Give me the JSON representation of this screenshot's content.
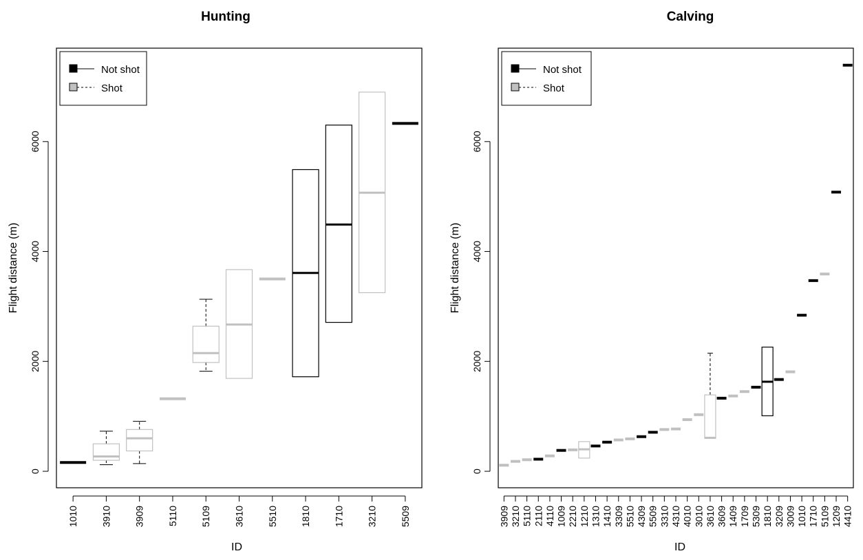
{
  "colors": {
    "not_shot": "#000000",
    "shot": "#c0c0c0"
  },
  "legend": {
    "items": [
      {
        "label": "Not shot",
        "status": "not_shot",
        "line": "solid"
      },
      {
        "label": "Shot",
        "status": "shot",
        "line": "dashed"
      }
    ],
    "position": "top-left"
  },
  "chart_data": [
    {
      "type": "box",
      "title": "Hunting",
      "xlabel": "ID",
      "ylabel": "Flight distance (m)",
      "ylim": [
        -300,
        7700
      ],
      "yticks": [
        0,
        2000,
        4000,
        6000
      ],
      "categories": [
        "1010",
        "3910",
        "3909",
        "5110",
        "5109",
        "3610",
        "5510",
        "1810",
        "1710",
        "3210",
        "5509"
      ],
      "boxes": [
        {
          "id": "1010",
          "status": "not_shot",
          "median": 160
        },
        {
          "id": "3910",
          "status": "shot",
          "q1": 200,
          "median": 270,
          "q3": 500,
          "whisker_low": 120,
          "whisker_high": 730
        },
        {
          "id": "3909",
          "status": "shot",
          "q1": 370,
          "median": 600,
          "q3": 760,
          "whisker_low": 140,
          "whisker_high": 910
        },
        {
          "id": "5110",
          "status": "shot",
          "median": 1320
        },
        {
          "id": "5109",
          "status": "shot",
          "q1": 1980,
          "median": 2150,
          "q3": 2640,
          "whisker_low": 1820,
          "whisker_high": 3130
        },
        {
          "id": "3610",
          "status": "shot",
          "q1": 1690,
          "median": 2670,
          "q3": 3670
        },
        {
          "id": "5510",
          "status": "shot",
          "median": 3500
        },
        {
          "id": "1810",
          "status": "not_shot",
          "q1": 1720,
          "median": 3610,
          "q3": 5490
        },
        {
          "id": "1710",
          "status": "not_shot",
          "q1": 2710,
          "median": 4490,
          "q3": 6300
        },
        {
          "id": "3210",
          "status": "shot",
          "q1": 3250,
          "median": 5070,
          "q3": 6900
        },
        {
          "id": "5509",
          "status": "not_shot",
          "median": 6330
        }
      ]
    },
    {
      "type": "box",
      "title": "Calving",
      "xlabel": "ID",
      "ylabel": "Flight distance (m)",
      "ylim": [
        -300,
        7700
      ],
      "yticks": [
        0,
        2000,
        4000,
        6000
      ],
      "categories": [
        "3909",
        "3210",
        "5110",
        "2110",
        "4110",
        "1009",
        "2210",
        "1210",
        "1310",
        "1410",
        "3309",
        "5510",
        "4309",
        "5509",
        "3310",
        "4310",
        "4010",
        "3010",
        "3610",
        "3609",
        "1409",
        "1709",
        "5309",
        "1810",
        "3209",
        "3009",
        "1010",
        "1710",
        "5109",
        "1209",
        "4410"
      ],
      "boxes": [
        {
          "id": "3909",
          "status": "shot",
          "median": 110
        },
        {
          "id": "3210",
          "status": "shot",
          "median": 180
        },
        {
          "id": "5110",
          "status": "shot",
          "median": 210
        },
        {
          "id": "2110",
          "status": "not_shot",
          "median": 220
        },
        {
          "id": "4110",
          "status": "shot",
          "median": 280
        },
        {
          "id": "1009",
          "status": "not_shot",
          "median": 380
        },
        {
          "id": "2210",
          "status": "shot",
          "median": 390
        },
        {
          "id": "1210",
          "status": "shot",
          "q1": 240,
          "median": 400,
          "q3": 540
        },
        {
          "id": "1310",
          "status": "not_shot",
          "median": 460
        },
        {
          "id": "1410",
          "status": "not_shot",
          "median": 530
        },
        {
          "id": "3309",
          "status": "shot",
          "median": 570
        },
        {
          "id": "5510",
          "status": "shot",
          "median": 590
        },
        {
          "id": "4309",
          "status": "not_shot",
          "median": 630
        },
        {
          "id": "5509",
          "status": "not_shot",
          "median": 710
        },
        {
          "id": "3310",
          "status": "shot",
          "median": 760
        },
        {
          "id": "4310",
          "status": "shot",
          "median": 770
        },
        {
          "id": "4010",
          "status": "shot",
          "median": 940
        },
        {
          "id": "3010",
          "status": "shot",
          "median": 1030
        },
        {
          "id": "3610",
          "status": "shot",
          "q1": 600,
          "median": 610,
          "q3": 1390,
          "whisker_high": 2150
        },
        {
          "id": "3609",
          "status": "not_shot",
          "median": 1330
        },
        {
          "id": "1409",
          "status": "shot",
          "median": 1370
        },
        {
          "id": "1709",
          "status": "shot",
          "median": 1450
        },
        {
          "id": "5309",
          "status": "not_shot",
          "median": 1530
        },
        {
          "id": "1810",
          "status": "not_shot",
          "q1": 1010,
          "median": 1630,
          "q3": 2260
        },
        {
          "id": "3209",
          "status": "not_shot",
          "median": 1670
        },
        {
          "id": "3009",
          "status": "shot",
          "median": 1810
        },
        {
          "id": "1010",
          "status": "not_shot",
          "median": 2840
        },
        {
          "id": "1710",
          "status": "not_shot",
          "median": 3470
        },
        {
          "id": "5109",
          "status": "shot",
          "median": 3590
        },
        {
          "id": "1209",
          "status": "not_shot",
          "median": 5080
        },
        {
          "id": "4410",
          "status": "not_shot",
          "median": 7390
        }
      ]
    }
  ]
}
